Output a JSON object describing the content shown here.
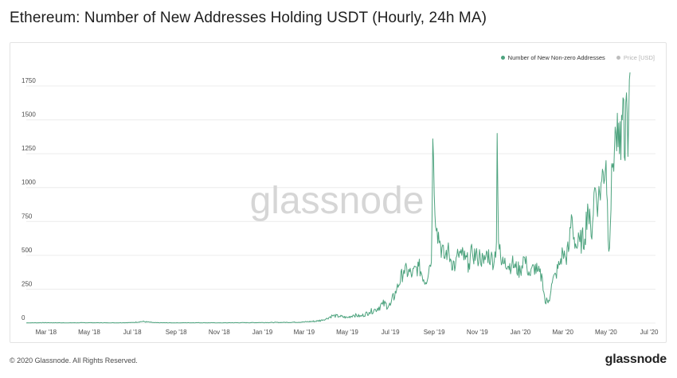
{
  "title": "Ethereum: Number of New Addresses Holding USDT (Hourly, 24h MA)",
  "legend": {
    "items": [
      {
        "label": "Number of New Non-zero Addresses",
        "color": "#4da37e",
        "active": true
      },
      {
        "label": "Price [USD]",
        "color": "#bdbdbd",
        "active": false
      }
    ]
  },
  "watermark": "glassnode",
  "footer": {
    "copyright": "© 2020 Glassnode. All Rights Reserved.",
    "logo": "glassnode"
  },
  "colors": {
    "line": "#4da37e",
    "grid": "#ececec",
    "tick": "#4a4a4a"
  },
  "chart_data": {
    "type": "line",
    "title": "Ethereum: Number of New Addresses Holding USDT (Hourly, 24h MA)",
    "xlabel": "",
    "ylabel": "",
    "ylim": [
      0,
      1950
    ],
    "xlim": [
      "2018-02-01",
      "2020-07-10"
    ],
    "yticks": [
      0,
      250,
      500,
      750,
      1000,
      1250,
      1500,
      1750
    ],
    "xticks": [
      {
        "label": "Mar '18",
        "date": "2018-03-01"
      },
      {
        "label": "May '18",
        "date": "2018-05-01"
      },
      {
        "label": "Jul '18",
        "date": "2018-07-01"
      },
      {
        "label": "Sep '18",
        "date": "2018-09-01"
      },
      {
        "label": "Nov '18",
        "date": "2018-11-01"
      },
      {
        "label": "Jan '19",
        "date": "2019-01-01"
      },
      {
        "label": "Mar '19",
        "date": "2019-03-01"
      },
      {
        "label": "May '19",
        "date": "2019-05-01"
      },
      {
        "label": "Jul '19",
        "date": "2019-07-01"
      },
      {
        "label": "Sep '19",
        "date": "2019-09-01"
      },
      {
        "label": "Nov '19",
        "date": "2019-11-01"
      },
      {
        "label": "Jan '20",
        "date": "2020-01-01"
      },
      {
        "label": "Mar '20",
        "date": "2020-03-01"
      },
      {
        "label": "May '20",
        "date": "2020-05-01"
      },
      {
        "label": "Jul '20",
        "date": "2020-07-01"
      }
    ],
    "grid": true,
    "legend_position": "top-right",
    "series": [
      {
        "name": "Number of New Non-zero Addresses",
        "x": [
          "2018-02-01",
          "2018-03-01",
          "2018-04-01",
          "2018-05-01",
          "2018-06-01",
          "2018-07-01",
          "2018-07-15",
          "2018-08-01",
          "2018-09-01",
          "2018-10-01",
          "2018-11-01",
          "2018-12-01",
          "2019-01-01",
          "2019-02-01",
          "2019-03-01",
          "2019-03-20",
          "2019-04-01",
          "2019-04-10",
          "2019-04-20",
          "2019-05-01",
          "2019-05-10",
          "2019-05-20",
          "2019-06-01",
          "2019-06-10",
          "2019-06-20",
          "2019-07-01",
          "2019-07-10",
          "2019-07-20",
          "2019-08-01",
          "2019-08-10",
          "2019-08-20",
          "2019-08-25",
          "2019-08-28",
          "2019-08-30",
          "2019-09-01",
          "2019-09-05",
          "2019-09-10",
          "2019-09-15",
          "2019-09-20",
          "2019-09-25",
          "2019-10-01",
          "2019-10-05",
          "2019-10-10",
          "2019-10-15",
          "2019-10-20",
          "2019-10-25",
          "2019-11-01",
          "2019-11-05",
          "2019-11-10",
          "2019-11-15",
          "2019-11-20",
          "2019-11-25",
          "2019-11-28",
          "2019-11-29",
          "2019-12-01",
          "2019-12-05",
          "2019-12-10",
          "2019-12-15",
          "2019-12-20",
          "2019-12-25",
          "2020-01-01",
          "2020-01-05",
          "2020-01-10",
          "2020-01-15",
          "2020-01-20",
          "2020-01-25",
          "2020-02-01",
          "2020-02-05",
          "2020-02-10",
          "2020-02-15",
          "2020-02-20",
          "2020-02-25",
          "2020-03-01",
          "2020-03-05",
          "2020-03-10",
          "2020-03-13",
          "2020-03-15",
          "2020-03-20",
          "2020-03-25",
          "2020-04-01",
          "2020-04-05",
          "2020-04-10",
          "2020-04-15",
          "2020-04-20",
          "2020-04-25",
          "2020-05-01",
          "2020-05-05",
          "2020-05-10",
          "2020-05-15",
          "2020-05-20",
          "2020-05-24",
          "2020-05-26",
          "2020-05-28",
          "2020-05-30",
          "2020-06-01",
          "2020-06-02",
          "2020-06-04"
        ],
        "values": [
          2,
          3,
          2,
          3,
          2,
          4,
          12,
          3,
          2,
          3,
          2,
          3,
          4,
          5,
          8,
          15,
          30,
          55,
          50,
          40,
          60,
          50,
          80,
          100,
          140,
          130,
          250,
          390,
          360,
          420,
          300,
          420,
          450,
          1360,
          950,
          700,
          580,
          480,
          540,
          460,
          420,
          510,
          500,
          470,
          440,
          520,
          480,
          500,
          440,
          520,
          480,
          460,
          600,
          1400,
          600,
          430,
          480,
          420,
          440,
          410,
          380,
          490,
          420,
          350,
          420,
          380,
          330,
          150,
          170,
          300,
          360,
          430,
          520,
          480,
          560,
          800,
          700,
          560,
          600,
          620,
          880,
          640,
          1000,
          900,
          1050,
          1200,
          530,
          1150,
          1400,
          1250,
          1500,
          1650,
          1200,
          1700,
          1230,
          1500,
          1850
        ]
      }
    ]
  }
}
